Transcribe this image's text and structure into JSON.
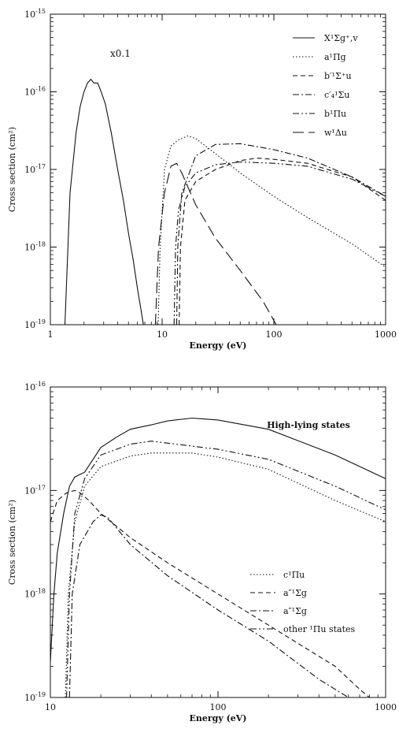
{
  "chart_data": [
    {
      "type": "line",
      "xlabel": "Energy (eV)",
      "ylabel": "Cross section (cm²)",
      "xscale": "log",
      "yscale": "log",
      "xlim": [
        1,
        1000
      ],
      "ylim": [
        1e-19,
        1e-15
      ],
      "x_tick_labels": [
        "1",
        "10",
        "100",
        "1000"
      ],
      "y_tick_labels": [
        {
          "base": "10",
          "exp": "-19"
        },
        {
          "base": "10",
          "exp": "-18"
        },
        {
          "base": "10",
          "exp": "-17"
        },
        {
          "base": "10",
          "exp": "-16"
        },
        {
          "base": "10",
          "exp": "-15"
        }
      ],
      "legend_position": "top-right",
      "grid": false,
      "annotation": "x0.1",
      "series": [
        {
          "name": "X¹Σg⁺,v",
          "style": "solid",
          "points": [
            [
              1.35,
              1e-19
            ],
            [
              1.5,
              5e-18
            ],
            [
              1.7,
              3e-17
            ],
            [
              1.85,
              6.5e-17
            ],
            [
              2.0,
              1e-16
            ],
            [
              2.15,
              1.3e-16
            ],
            [
              2.3,
              1.45e-16
            ],
            [
              2.45,
              1.3e-16
            ],
            [
              2.65,
              1.3e-16
            ],
            [
              2.85,
              1e-16
            ],
            [
              3.1,
              7e-17
            ],
            [
              3.5,
              3e-17
            ],
            [
              4.0,
              1e-17
            ],
            [
              4.5,
              4e-18
            ],
            [
              5.0,
              1.5e-18
            ],
            [
              5.5,
              7e-19
            ],
            [
              6.0,
              3e-19
            ],
            [
              6.5,
              1.5e-19
            ],
            [
              6.8,
              1e-19
            ]
          ]
        },
        {
          "name": "a¹Πg",
          "style": "dotted",
          "points": [
            [
              9.2,
              1e-19
            ],
            [
              9.6,
              1e-18
            ],
            [
              10.5,
              1e-17
            ],
            [
              12,
              2e-17
            ],
            [
              14,
              2.4e-17
            ],
            [
              17,
              2.7e-17
            ],
            [
              20,
              2.5e-17
            ],
            [
              30,
              1.6e-17
            ],
            [
              50,
              9e-18
            ],
            [
              100,
              4.5e-18
            ],
            [
              200,
              2.4e-18
            ],
            [
              500,
              1.1e-18
            ],
            [
              1000,
              5.5e-19
            ]
          ]
        },
        {
          "name": "b′¹Σ⁺u",
          "style": "short-dash",
          "points": [
            [
              14.2,
              1e-19
            ],
            [
              14.6,
              1e-18
            ],
            [
              16,
              4e-18
            ],
            [
              20,
              7e-18
            ],
            [
              30,
              1e-17
            ],
            [
              50,
              1.3e-17
            ],
            [
              70,
              1.4e-17
            ],
            [
              100,
              1.35e-17
            ],
            [
              200,
              1.2e-17
            ],
            [
              500,
              8e-18
            ],
            [
              1000,
              4e-18
            ]
          ]
        },
        {
          "name": "c′₄¹Σu",
          "style": "dash-dot",
          "points": [
            [
              13.5,
              1e-19
            ],
            [
              13.8,
              1e-18
            ],
            [
              15,
              5e-18
            ],
            [
              20,
              1.5e-17
            ],
            [
              30,
              2.1e-17
            ],
            [
              50,
              2.15e-17
            ],
            [
              100,
              1.8e-17
            ],
            [
              200,
              1.4e-17
            ],
            [
              500,
              8e-18
            ],
            [
              1000,
              4.5e-18
            ]
          ]
        },
        {
          "name": "b¹Πu",
          "style": "dash-dot-dot",
          "points": [
            [
              12.8,
              1e-19
            ],
            [
              13.2,
              1e-18
            ],
            [
              14,
              3e-18
            ],
            [
              16,
              6e-18
            ],
            [
              20,
              9e-18
            ],
            [
              30,
              1.15e-17
            ],
            [
              50,
              1.25e-17
            ],
            [
              100,
              1.2e-17
            ],
            [
              200,
              1.1e-17
            ],
            [
              500,
              7.5e-18
            ],
            [
              1000,
              4.5e-18
            ]
          ]
        },
        {
          "name": "w¹Δu",
          "style": "long-dash",
          "points": [
            [
              8.7,
              1e-19
            ],
            [
              9.3,
              1e-18
            ],
            [
              10.5,
              5e-18
            ],
            [
              12,
              1.1e-17
            ],
            [
              13.5,
              1.2e-17
            ],
            [
              15,
              9e-18
            ],
            [
              20,
              3.5e-18
            ],
            [
              30,
              1.3e-18
            ],
            [
              50,
              5e-19
            ],
            [
              80,
              2e-19
            ],
            [
              105,
              1e-19
            ]
          ]
        }
      ]
    },
    {
      "type": "line",
      "xlabel": "Energy (eV)",
      "ylabel": "Cross section (cm²)",
      "xscale": "log",
      "yscale": "log",
      "xlim": [
        10,
        1000
      ],
      "ylim": [
        1e-19,
        1e-16
      ],
      "x_tick_labels": [
        "10",
        "100",
        "1000"
      ],
      "y_tick_labels": [
        {
          "base": "10",
          "exp": "-19"
        },
        {
          "base": "10",
          "exp": "-18"
        },
        {
          "base": "10",
          "exp": "-17"
        },
        {
          "base": "10",
          "exp": "-16"
        }
      ],
      "legend_position": "bottom-right",
      "grid": false,
      "series": [
        {
          "name": "High-lying states",
          "style": "solid",
          "points": [
            [
              10,
              2.2e-19
            ],
            [
              10.5,
              1e-18
            ],
            [
              11,
              2.5e-18
            ],
            [
              12,
              6e-18
            ],
            [
              13,
              1.1e-17
            ],
            [
              14,
              1.35e-17
            ],
            [
              16,
              1.5e-17
            ],
            [
              20,
              2.6e-17
            ],
            [
              25,
              3.3e-17
            ],
            [
              30,
              3.9e-17
            ],
            [
              40,
              4.3e-17
            ],
            [
              50,
              4.7e-17
            ],
            [
              70,
              5e-17
            ],
            [
              100,
              4.8e-17
            ],
            [
              200,
              3.9e-17
            ],
            [
              500,
              2.2e-17
            ],
            [
              1000,
              1.3e-17
            ]
          ]
        },
        {
          "name": "c¹Πu",
          "style": "dotted",
          "points": [
            [
              12.3,
              1e-19
            ],
            [
              12.8,
              1e-18
            ],
            [
              14,
              5e-18
            ],
            [
              16,
              1.1e-17
            ],
            [
              20,
              1.7e-17
            ],
            [
              30,
              2.15e-17
            ],
            [
              40,
              2.3e-17
            ],
            [
              70,
              2.3e-17
            ],
            [
              100,
              2.1e-17
            ],
            [
              200,
              1.6e-17
            ],
            [
              500,
              8e-18
            ],
            [
              1000,
              5e-18
            ]
          ]
        },
        {
          "name": "a″¹Σg",
          "style": "short-dash",
          "points": [
            [
              10,
              5e-18
            ],
            [
              11,
              8e-18
            ],
            [
              12.5,
              9.5e-18
            ],
            [
              14,
              1e-17
            ],
            [
              15,
              9.5e-18
            ],
            [
              17,
              8e-18
            ],
            [
              20,
              6e-18
            ],
            [
              30,
              3.5e-18
            ],
            [
              50,
              2e-18
            ],
            [
              100,
              1e-18
            ],
            [
              200,
              5e-19
            ],
            [
              500,
              2e-19
            ],
            [
              700,
              1.2e-19
            ],
            [
              800,
              1e-19
            ]
          ]
        },
        {
          "name": "a″¹Σg",
          "style": "dash-dot",
          "points": [
            [
              13,
              1e-19
            ],
            [
              13.5,
              1e-18
            ],
            [
              15,
              3e-18
            ],
            [
              18,
              5e-18
            ],
            [
              20,
              5.8e-18
            ],
            [
              22,
              5.5e-18
            ],
            [
              30,
              3e-18
            ],
            [
              50,
              1.5e-18
            ],
            [
              100,
              7e-19
            ],
            [
              200,
              3.5e-19
            ],
            [
              400,
              1.5e-19
            ],
            [
              600,
              1e-19
            ]
          ]
        },
        {
          "name": "other ¹Πu states",
          "style": "dash-dot-dot",
          "points": [
            [
              12.5,
              1e-19
            ],
            [
              13,
              1e-18
            ],
            [
              14,
              6e-18
            ],
            [
              16,
              1.3e-17
            ],
            [
              20,
              2.2e-17
            ],
            [
              30,
              2.8e-17
            ],
            [
              40,
              3e-17
            ],
            [
              100,
              2.5e-17
            ],
            [
              200,
              2e-17
            ],
            [
              500,
              1.1e-17
            ],
            [
              1000,
              6.5e-18
            ]
          ]
        }
      ]
    }
  ]
}
